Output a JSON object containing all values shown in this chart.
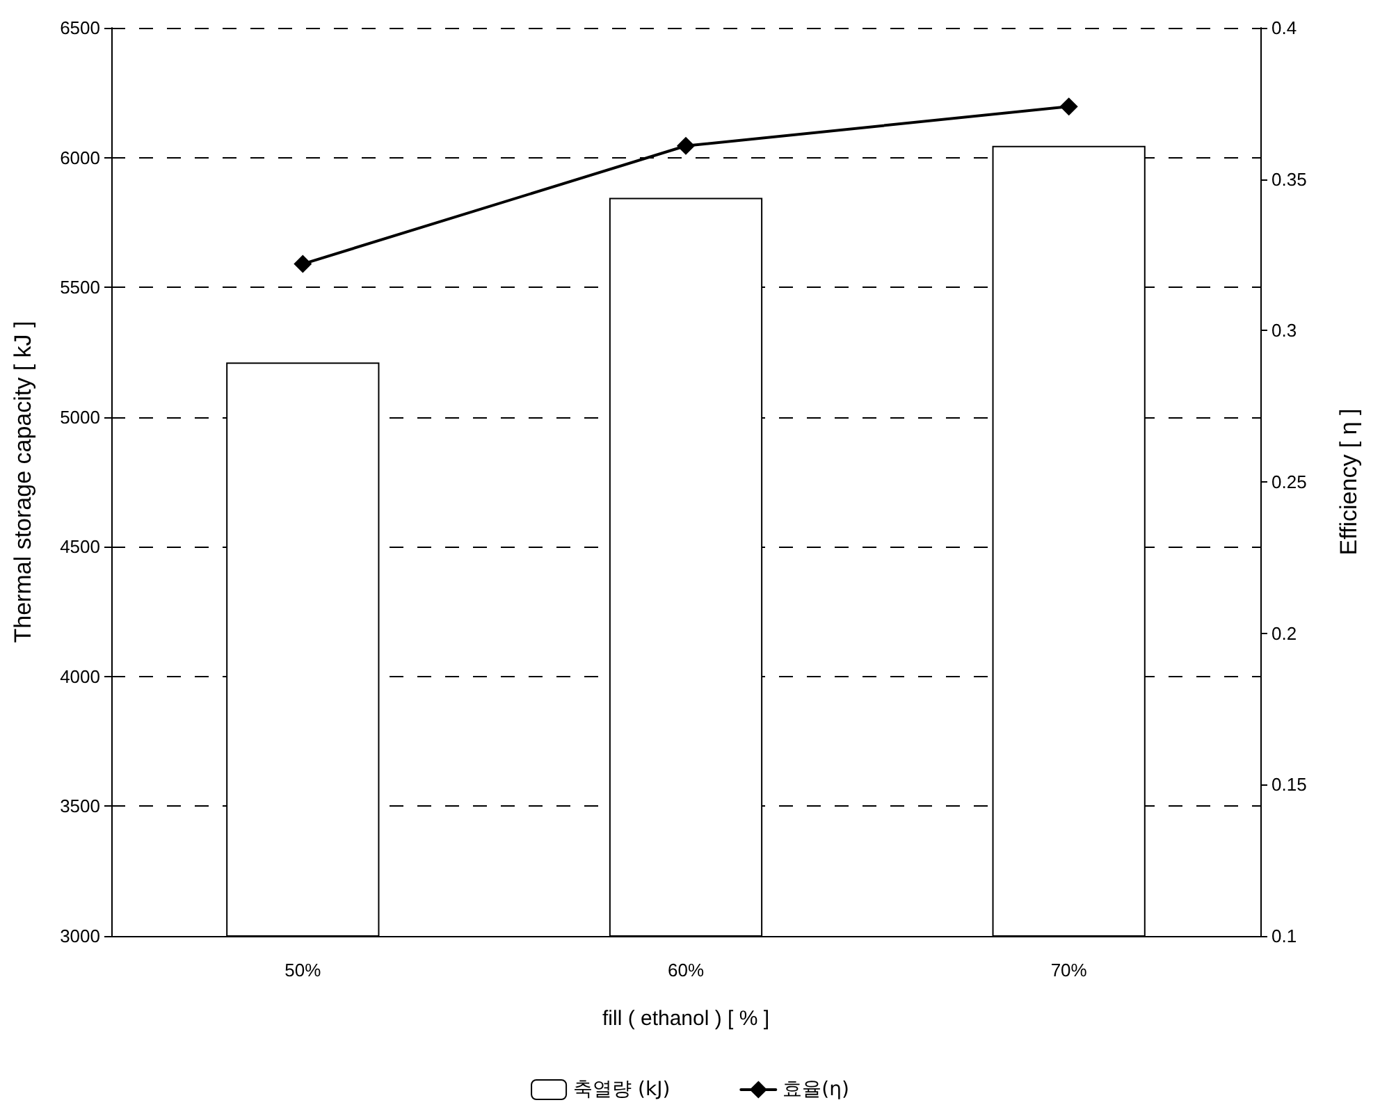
{
  "chart_data": {
    "type": "bar",
    "xlabel": "fill ( ethanol ) [ % ]",
    "ylabel": "Thermal storage capacity [ kJ ]",
    "y2label": "Efficiency [ η ]",
    "categories": [
      "50%",
      "60%",
      "70%"
    ],
    "series": [
      {
        "name": "축열량 (kJ)",
        "color": "#ffffff",
        "values": [
          5210,
          5845,
          6045
        ]
      },
      {
        "name": "효율(η)",
        "type": "line",
        "axis": "y2",
        "color": "#000000",
        "marker": "diamond",
        "values": [
          0.322,
          0.361,
          0.374
        ]
      }
    ],
    "ylim": [
      3000,
      6500
    ],
    "yticks": [
      3000,
      3500,
      4000,
      4500,
      5000,
      5500,
      6000,
      6500
    ],
    "y2lim": [
      0.1,
      0.4
    ],
    "y2ticks": [
      0.1,
      0.15,
      0.2,
      0.25,
      0.3,
      0.35,
      0.4
    ],
    "grid": "y",
    "legend": "bottom",
    "line_style": "solid"
  }
}
